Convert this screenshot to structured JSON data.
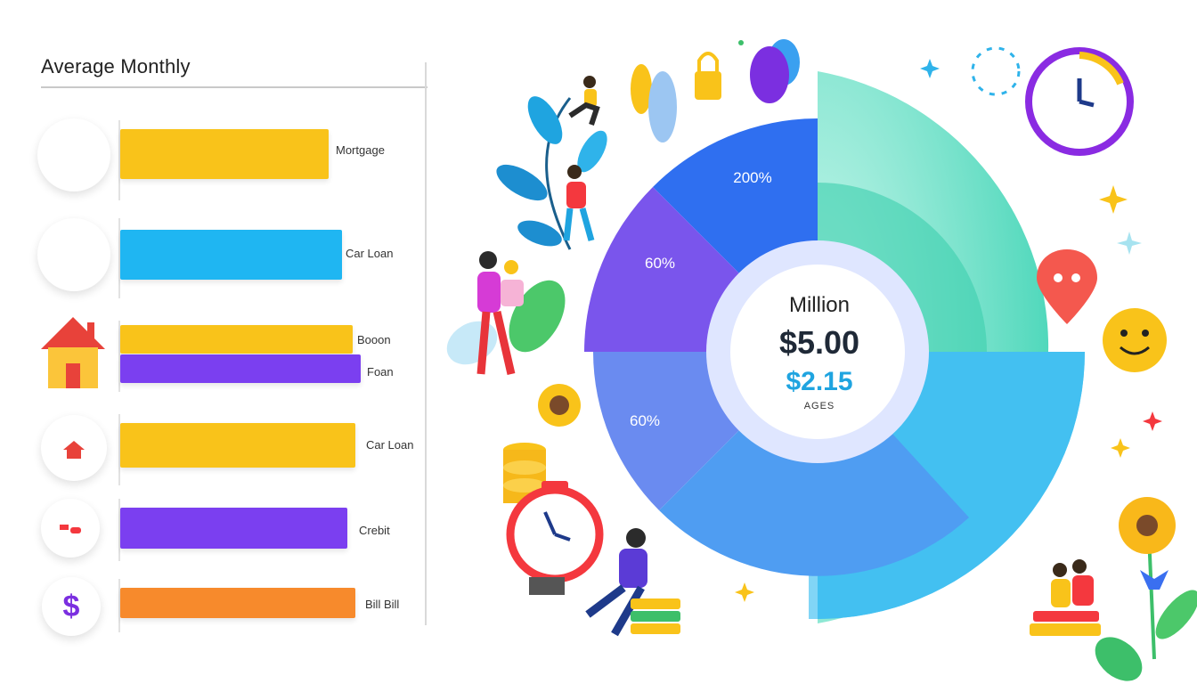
{
  "chart_data": [
    {
      "type": "bar",
      "title": "Average Monthly",
      "categories": [
        "Mortgage",
        "Car Loan",
        "Boοon",
        "Foan",
        "Car Loan",
        "Crebit",
        "Bill Bill"
      ],
      "values": [
        78,
        83,
        87,
        90,
        88,
        85,
        88
      ],
      "colors": [
        "#f9c31a",
        "#1fb6f2",
        "#f9c31a",
        "#7b3ff0",
        "#f9c31a",
        "#7b3ff0",
        "#f78a2c"
      ],
      "xlim": [
        0,
        100
      ],
      "grid": false,
      "legend": "none"
    },
    {
      "type": "pie",
      "variant": "donut",
      "slices": [
        {
          "label": "200%",
          "value": 25,
          "color": "#2f6ff0"
        },
        {
          "label": "60%",
          "value": 12.5,
          "color": "#7a55ec"
        },
        {
          "label": "60%",
          "value": 12.5,
          "color": "#6a8bf0"
        },
        {
          "label": "",
          "value": 25,
          "color": "#3bb7f2"
        },
        {
          "label": "",
          "value": 25,
          "color": "#69e0c8"
        }
      ],
      "center_texts": [
        "Million",
        "$5.00",
        "$2.15",
        "AGES"
      ]
    }
  ],
  "badges": [
    {
      "icon": "dollar-icon",
      "glyph": "$",
      "color": "#2fd37f"
    },
    {
      "icon": "dollar-icon",
      "glyph": "$",
      "color": "#f4383e"
    },
    {
      "icon": "house-icon",
      "glyph": "",
      "color": "#f9c31a"
    },
    {
      "icon": "home-card-icon",
      "glyph": "",
      "color": "#2fd37f"
    },
    {
      "icon": "credit-card-icon",
      "glyph": "",
      "color": "#4a7ff2"
    },
    {
      "icon": "dollar-icon",
      "glyph": "$",
      "color": "#f9c31a"
    }
  ]
}
